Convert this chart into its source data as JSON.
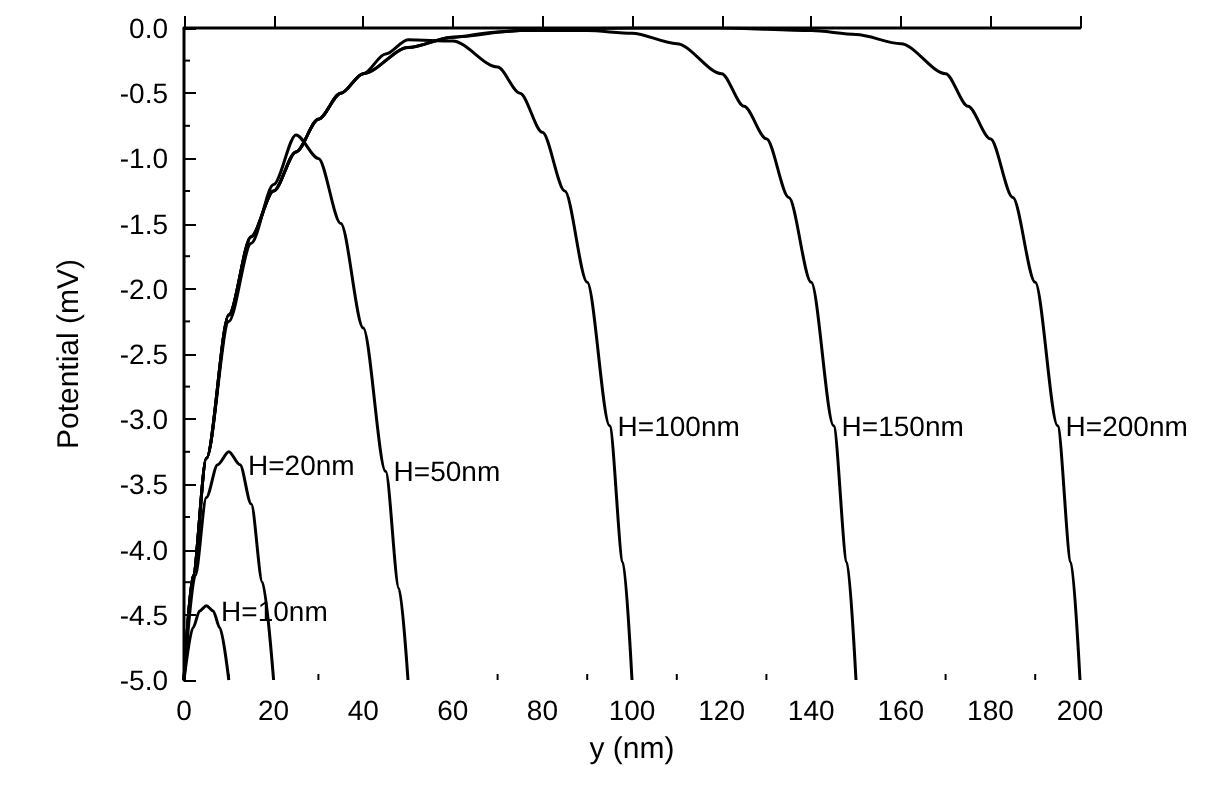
{
  "chart_data": {
    "type": "line",
    "xlabel": "y (nm)",
    "ylabel": "Potential (mV)",
    "xlim": [
      0,
      200
    ],
    "xticks": [
      0,
      20,
      40,
      60,
      80,
      100,
      120,
      140,
      160,
      180,
      200
    ],
    "ylim": [
      -5,
      0
    ],
    "yticks": [
      {
        "value": 0,
        "label": "0.0"
      },
      {
        "value": -0.5,
        "label": "-0.5"
      },
      {
        "value": -1,
        "label": "-1.0"
      },
      {
        "value": -1.5,
        "label": "-1.5"
      },
      {
        "value": -2,
        "label": "-2.0"
      },
      {
        "value": -2.5,
        "label": "-2.5"
      },
      {
        "value": -3,
        "label": "-3.0"
      },
      {
        "value": -3.5,
        "label": "-3.5"
      },
      {
        "value": -4,
        "label": "-4.0"
      },
      {
        "value": -4.5,
        "label": "-4.5"
      },
      {
        "value": -5,
        "label": "-5.0"
      }
    ],
    "grid": false,
    "marker": "none",
    "line_style": "solid",
    "series": [
      {
        "name": "H=10nm",
        "color": "#000000",
        "x": [
          0,
          2,
          3.5,
          5,
          6.5,
          8,
          10
        ],
        "values": [
          -5,
          -4.6,
          -4.47,
          -4.43,
          -4.47,
          -4.6,
          -5
        ]
      },
      {
        "name": "H=20nm",
        "color": "#000000",
        "x": [
          0,
          2.5,
          5,
          7.5,
          10,
          12.5,
          15,
          17.5,
          20
        ],
        "values": [
          -5,
          -4.2,
          -3.6,
          -3.35,
          -3.25,
          -3.35,
          -3.65,
          -4.25,
          -5
        ]
      },
      {
        "name": "H=50nm",
        "color": "#000000",
        "x": [
          0,
          2,
          5,
          10,
          15,
          20,
          25,
          30,
          35,
          40,
          45,
          48,
          50
        ],
        "values": [
          -5,
          -4.2,
          -3.3,
          -2.25,
          -1.65,
          -1.2,
          -0.82,
          -1,
          -1.5,
          -2.3,
          -3.4,
          -4.3,
          -5
        ]
      },
      {
        "name": "H=100nm",
        "color": "#000000",
        "x": [
          0,
          2,
          5,
          10,
          15,
          20,
          25,
          30,
          35,
          40,
          45,
          50,
          60,
          70,
          75,
          80,
          85,
          90,
          95,
          98,
          100
        ],
        "values": [
          -5,
          -4.2,
          -3.3,
          -2.2,
          -1.6,
          -1.25,
          -0.95,
          -0.7,
          -0.5,
          -0.35,
          -0.2,
          -0.09,
          -0.1,
          -0.3,
          -0.5,
          -0.8,
          -1.25,
          -1.95,
          -3.05,
          -4.1,
          -5
        ]
      },
      {
        "name": "H=150nm",
        "color": "#000000",
        "x": [
          0,
          2,
          5,
          10,
          15,
          20,
          25,
          30,
          35,
          40,
          50,
          60,
          75,
          90,
          100,
          110,
          120,
          125,
          130,
          135,
          140,
          145,
          148,
          150
        ],
        "values": [
          -5,
          -4.2,
          -3.3,
          -2.2,
          -1.6,
          -1.25,
          -0.95,
          -0.7,
          -0.5,
          -0.35,
          -0.15,
          -0.07,
          -0.02,
          -0.02,
          -0.04,
          -0.12,
          -0.35,
          -0.6,
          -0.85,
          -1.3,
          -1.95,
          -3.05,
          -4.1,
          -5
        ]
      },
      {
        "name": "H=200nm",
        "color": "#000000",
        "x": [
          0,
          2,
          5,
          10,
          15,
          20,
          25,
          30,
          35,
          40,
          50,
          60,
          70,
          80,
          100,
          120,
          140,
          150,
          160,
          170,
          175,
          180,
          185,
          190,
          195,
          198,
          200
        ],
        "values": [
          -5,
          -4.2,
          -3.3,
          -2.2,
          -1.6,
          -1.25,
          -0.95,
          -0.7,
          -0.5,
          -0.35,
          -0.15,
          -0.07,
          -0.03,
          -0.01,
          0,
          0,
          -0.02,
          -0.05,
          -0.12,
          -0.35,
          -0.6,
          -0.85,
          -1.3,
          -1.95,
          -3.05,
          -4.1,
          -5
        ]
      }
    ]
  }
}
